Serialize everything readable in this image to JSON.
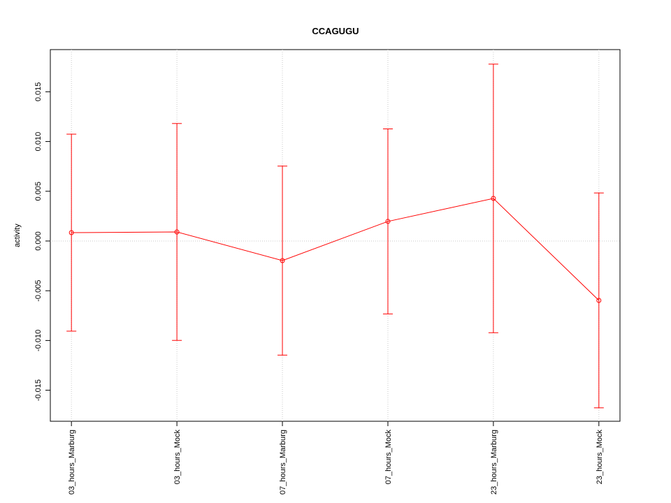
{
  "chart_data": {
    "type": "line",
    "title": "CCAGUGU",
    "y_label": "activity",
    "categories": [
      "03_hours_Marburg",
      "03_hours_Mock",
      "07_hours_Marburg",
      "07_hours_Mock",
      "23_hours_Marburg",
      "23_hours_Mock"
    ],
    "series": [
      {
        "name": "activity",
        "color": "#ff0000",
        "values": [
          0.00084,
          0.00091,
          -0.00197,
          0.00197,
          0.00428,
          -0.00597
        ],
        "errors": [
          0.0099,
          0.0109,
          0.0095,
          0.0093,
          0.0135,
          0.0108
        ]
      }
    ],
    "ylim": [
      -0.01812,
      0.01924
    ],
    "yticks": [
      -0.015,
      {
        "value": -0.01,
        "label": "-0.010"
      },
      -0.005,
      {
        "value": 0,
        "label": "0.000"
      },
      0.005,
      {
        "value": 0.01,
        "label": "0.010"
      },
      0.015
    ],
    "hline": 0,
    "grid_x": true
  }
}
